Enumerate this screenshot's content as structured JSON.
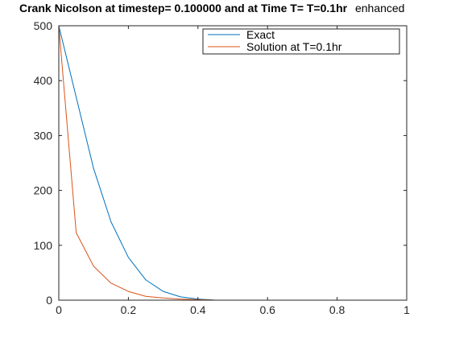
{
  "figure": {
    "background": "#ffffff"
  },
  "chart_data": {
    "type": "line",
    "title_bold": "Crank Nicolson at timestep= 0.100000 and at Time T= T=0.1hr",
    "title_suffix": "enhanced",
    "xlabel": "",
    "ylabel": "",
    "xlim": [
      0,
      1
    ],
    "ylim": [
      0,
      500
    ],
    "x_ticks": [
      {
        "value": 0,
        "label": "0"
      },
      {
        "value": 0.2,
        "label": "0.2"
      },
      {
        "value": 0.4,
        "label": "0.4"
      },
      {
        "value": 0.6,
        "label": "0.6"
      },
      {
        "value": 0.8,
        "label": "0.8"
      },
      {
        "value": 1,
        "label": "1"
      }
    ],
    "y_ticks": [
      {
        "value": 0,
        "label": "0"
      },
      {
        "value": 100,
        "label": "100"
      },
      {
        "value": 200,
        "label": "200"
      },
      {
        "value": 300,
        "label": "300"
      },
      {
        "value": 400,
        "label": "400"
      },
      {
        "value": 500,
        "label": "500"
      }
    ],
    "grid": false,
    "box": true,
    "legend_position": "top-right",
    "axis_color": "#262626",
    "series": [
      {
        "name": "Exact",
        "color": "#0072bd",
        "x": [
          0,
          0.05,
          0.1,
          0.15,
          0.2,
          0.25,
          0.3,
          0.35,
          0.4,
          0.45
        ],
        "y": [
          500,
          370,
          240,
          143,
          78,
          37,
          16,
          6,
          2,
          0
        ]
      },
      {
        "name": "Solution at T=0.1hr",
        "color": "#d95319",
        "x": [
          0,
          0.05,
          0.1,
          0.15,
          0.2,
          0.25,
          0.3,
          0.35,
          0.4,
          0.45
        ],
        "y": [
          500,
          123,
          62,
          31,
          16,
          7,
          4,
          2,
          1,
          0
        ]
      }
    ]
  }
}
